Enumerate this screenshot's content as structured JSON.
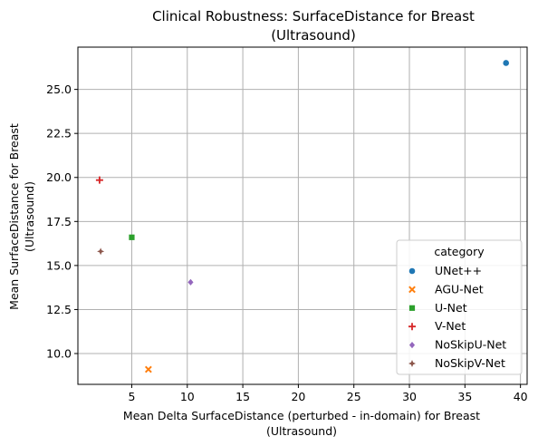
{
  "chart_data": {
    "type": "scatter",
    "title_lines": [
      "Clinical Robustness: SurfaceDistance for Breast",
      "(Ultrasound)"
    ],
    "xlabel_lines": [
      "Mean Delta SurfaceDistance (perturbed - in-domain) for Breast",
      "(Ultrasound)"
    ],
    "ylabel_lines": [
      "Mean SurfaceDistance for Breast",
      "(Ultrasound)"
    ],
    "xlim": [
      0.15,
      40.6
    ],
    "ylim": [
      8.25,
      27.4
    ],
    "xticks": [
      5,
      10,
      15,
      20,
      25,
      30,
      35,
      40
    ],
    "yticks": [
      10.0,
      12.5,
      15.0,
      17.5,
      20.0,
      22.5,
      25.0
    ],
    "ytick_labels": [
      "10.0",
      "12.5",
      "15.0",
      "17.5",
      "20.0",
      "22.5",
      "25.0"
    ],
    "grid": true,
    "legend": {
      "title": "category",
      "placement": "lower-right"
    },
    "series": [
      {
        "name": "UNet++",
        "marker": "circle",
        "color": "#1f77b4",
        "x": [
          38.7
        ],
        "y": [
          26.5
        ]
      },
      {
        "name": "AGU-Net",
        "marker": "x",
        "color": "#ff7f0e",
        "x": [
          6.5
        ],
        "y": [
          9.1
        ]
      },
      {
        "name": "U-Net",
        "marker": "square",
        "color": "#2ca02c",
        "x": [
          5.0
        ],
        "y": [
          16.6
        ]
      },
      {
        "name": "V-Net",
        "marker": "plus",
        "color": "#d62728",
        "x": [
          2.1
        ],
        "y": [
          19.85
        ]
      },
      {
        "name": "NoSkipU-Net",
        "marker": "diamond",
        "color": "#9467bd",
        "x": [
          10.3
        ],
        "y": [
          14.05
        ]
      },
      {
        "name": "NoSkipV-Net",
        "marker": "star4",
        "color": "#8c564b",
        "x": [
          2.2
        ],
        "y": [
          15.8
        ]
      }
    ]
  }
}
